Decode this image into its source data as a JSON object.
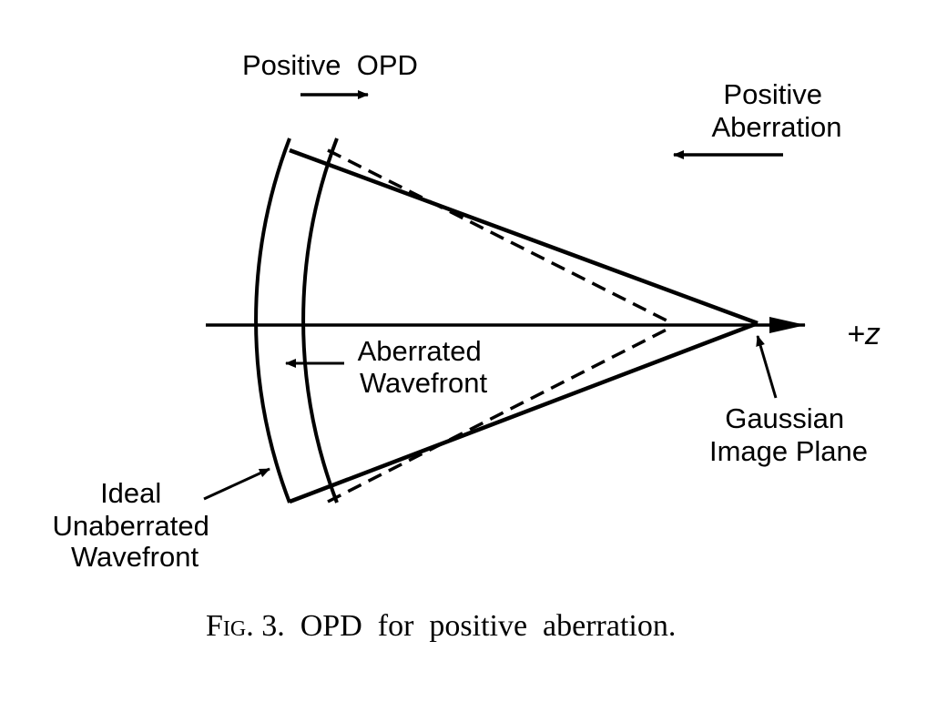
{
  "labels": {
    "positive_opd": "Positive  OPD",
    "positive_aberration": [
      "Positive",
      "Aberration"
    ],
    "aberrated_wavefront": [
      "Aberrated",
      "Wavefront"
    ],
    "gaussian_image_plane": [
      "Gaussian",
      "Image Plane"
    ],
    "ideal_wavefront": [
      "Ideal",
      "Unaberrated",
      "Wavefront"
    ],
    "axis": "+z"
  },
  "caption": {
    "prefix": "Fig.",
    "text": " 3.  OPD  for  positive  aberration."
  },
  "colors": {
    "ink": "#000000",
    "background": "#ffffff"
  }
}
